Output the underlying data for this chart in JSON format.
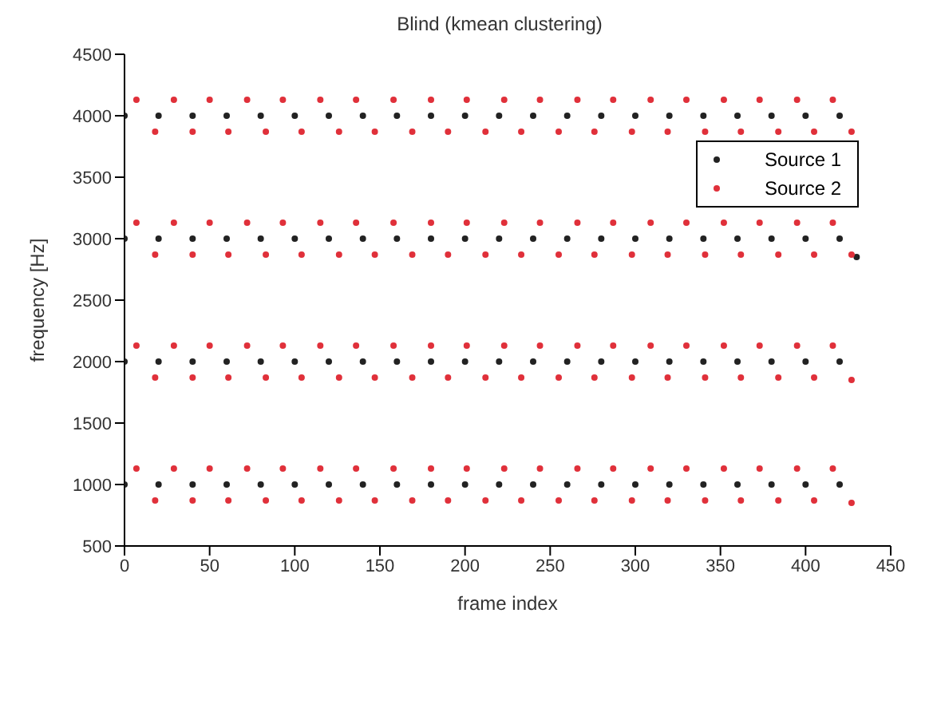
{
  "chart_data": {
    "type": "scatter",
    "title": "Blind (kmean clustering)",
    "xlabel": "frame index",
    "ylabel": "frequency [Hz]",
    "xlim": [
      0,
      450
    ],
    "xticks": [
      0,
      50,
      100,
      150,
      200,
      250,
      300,
      350,
      400,
      450
    ],
    "ylim": [
      500,
      4500
    ],
    "yticks": [
      500,
      1000,
      1500,
      2000,
      2500,
      3000,
      3500,
      4000,
      4500
    ],
    "grid": false,
    "legend": "top right",
    "marker": "circle",
    "series": [
      {
        "name": "Source 1",
        "color": "#222222",
        "x": [
          0,
          20,
          40,
          60,
          80,
          100,
          120,
          140,
          160,
          180,
          200,
          220,
          240,
          260,
          280,
          300,
          320,
          340,
          360,
          380,
          400,
          420,
          0,
          20,
          40,
          60,
          80,
          100,
          120,
          140,
          160,
          180,
          200,
          220,
          240,
          260,
          280,
          300,
          320,
          340,
          360,
          380,
          400,
          420,
          0,
          20,
          40,
          60,
          80,
          100,
          120,
          140,
          160,
          180,
          200,
          220,
          240,
          260,
          280,
          300,
          320,
          340,
          360,
          380,
          400,
          420,
          0,
          20,
          40,
          60,
          80,
          100,
          120,
          140,
          160,
          180,
          200,
          220,
          240,
          260,
          280,
          300,
          320,
          340,
          360,
          380,
          400,
          420,
          430
        ],
        "values": [
          1000,
          1000,
          1000,
          1000,
          1000,
          1000,
          1000,
          1000,
          1000,
          1000,
          1000,
          1000,
          1000,
          1000,
          1000,
          1000,
          1000,
          1000,
          1000,
          1000,
          1000,
          1000,
          2000,
          2000,
          2000,
          2000,
          2000,
          2000,
          2000,
          2000,
          2000,
          2000,
          2000,
          2000,
          2000,
          2000,
          2000,
          2000,
          2000,
          2000,
          2000,
          2000,
          2000,
          2000,
          3000,
          3000,
          3000,
          3000,
          3000,
          3000,
          3000,
          3000,
          3000,
          3000,
          3000,
          3000,
          3000,
          3000,
          3000,
          3000,
          3000,
          3000,
          3000,
          3000,
          3000,
          3000,
          4000,
          4000,
          4000,
          4000,
          4000,
          4000,
          4000,
          4000,
          4000,
          4000,
          4000,
          4000,
          4000,
          4000,
          4000,
          4000,
          4000,
          4000,
          4000,
          4000,
          4000,
          4000,
          2850
        ]
      },
      {
        "name": "Source 2",
        "color": "#e0303a",
        "x": [
          7,
          29,
          50,
          72,
          93,
          115,
          136,
          158,
          180,
          201,
          223,
          244,
          266,
          287,
          309,
          330,
          352,
          373,
          395,
          416,
          18,
          40,
          61,
          83,
          104,
          126,
          147,
          169,
          190,
          212,
          233,
          255,
          276,
          298,
          319,
          341,
          362,
          384,
          405,
          427,
          7,
          29,
          50,
          72,
          93,
          115,
          136,
          158,
          180,
          201,
          223,
          244,
          266,
          287,
          309,
          330,
          352,
          373,
          395,
          416,
          18,
          40,
          61,
          83,
          104,
          126,
          147,
          169,
          190,
          212,
          233,
          255,
          276,
          298,
          319,
          341,
          362,
          384,
          405,
          427,
          7,
          29,
          50,
          72,
          93,
          115,
          136,
          158,
          180,
          201,
          223,
          244,
          266,
          287,
          309,
          330,
          352,
          373,
          395,
          416,
          18,
          40,
          61,
          83,
          104,
          126,
          147,
          169,
          190,
          212,
          233,
          255,
          276,
          298,
          319,
          341,
          362,
          384,
          405,
          427,
          7,
          29,
          50,
          72,
          93,
          115,
          136,
          158,
          180,
          201,
          223,
          244,
          266,
          287,
          309,
          330,
          352,
          373,
          395,
          416,
          18,
          40,
          61,
          83,
          104,
          126,
          147,
          169,
          190,
          212,
          233,
          255,
          276,
          298,
          319,
          341,
          362,
          384,
          405,
          427
        ],
        "values": [
          1130,
          1130,
          1130,
          1130,
          1130,
          1130,
          1130,
          1130,
          1130,
          1130,
          1130,
          1130,
          1130,
          1130,
          1130,
          1130,
          1130,
          1130,
          1130,
          1130,
          870,
          870,
          870,
          870,
          870,
          870,
          870,
          870,
          870,
          870,
          870,
          870,
          870,
          870,
          870,
          870,
          870,
          870,
          870,
          850,
          2130,
          2130,
          2130,
          2130,
          2130,
          2130,
          2130,
          2130,
          2130,
          2130,
          2130,
          2130,
          2130,
          2130,
          2130,
          2130,
          2130,
          2130,
          2130,
          2130,
          1870,
          1870,
          1870,
          1870,
          1870,
          1870,
          1870,
          1870,
          1870,
          1870,
          1870,
          1870,
          1870,
          1870,
          1870,
          1870,
          1870,
          1870,
          1870,
          1850,
          3130,
          3130,
          3130,
          3130,
          3130,
          3130,
          3130,
          3130,
          3130,
          3130,
          3130,
          3130,
          3130,
          3130,
          3130,
          3130,
          3130,
          3130,
          3130,
          3130,
          2870,
          2870,
          2870,
          2870,
          2870,
          2870,
          2870,
          2870,
          2870,
          2870,
          2870,
          2870,
          2870,
          2870,
          2870,
          2870,
          2870,
          2870,
          2870,
          2870,
          4130,
          4130,
          4130,
          4130,
          4130,
          4130,
          4130,
          4130,
          4130,
          4130,
          4130,
          4130,
          4130,
          4130,
          4130,
          4130,
          4130,
          4130,
          4130,
          4130,
          3870,
          3870,
          3870,
          3870,
          3870,
          3870,
          3870,
          3870,
          3870,
          3870,
          3870,
          3870,
          3870,
          3870,
          3870,
          3870,
          3870,
          3870,
          3870,
          3870
        ]
      }
    ]
  }
}
